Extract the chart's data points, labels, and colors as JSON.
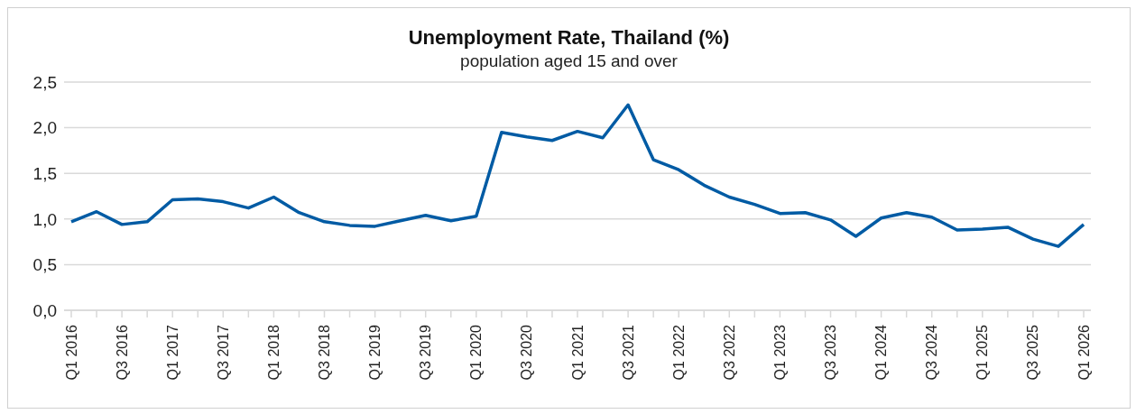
{
  "chart_data": {
    "type": "line",
    "title": "Unemployment Rate, Thailand (%)",
    "subtitle": "population aged 15 and over",
    "categories": [
      "Q1 2016",
      null,
      "Q3 2016",
      null,
      "Q1 2017",
      null,
      "Q3 2017",
      null,
      "Q1 2018",
      null,
      "Q3 2018",
      null,
      "Q1 2019",
      null,
      "Q3 2019",
      null,
      "Q1 2020",
      null,
      "Q3 2020",
      null,
      "Q1 2021",
      null,
      "Q3 2021",
      null,
      "Q1 2022",
      null,
      "Q3 2022",
      null,
      "Q1 2023",
      null,
      "Q3 2023",
      null,
      "Q1 2024",
      null,
      "Q3 2024",
      null,
      "Q1 2025",
      null,
      "Q3 2025",
      null,
      "Q1 2026"
    ],
    "series": [
      {
        "color": "#005ba4",
        "values": [
          0.97,
          1.08,
          0.94,
          0.97,
          1.21,
          1.22,
          1.19,
          1.12,
          1.24,
          1.07,
          0.97,
          0.93,
          0.92,
          0.98,
          1.04,
          0.98,
          1.03,
          1.95,
          1.9,
          1.86,
          1.96,
          1.89,
          2.25,
          1.65,
          1.54,
          1.37,
          1.24,
          1.16,
          1.06,
          1.07,
          0.99,
          0.81,
          1.01,
          1.07,
          1.02,
          0.88,
          0.89,
          0.91,
          0.78,
          0.7,
          0.94
        ]
      }
    ],
    "ylim": [
      0,
      2.5
    ],
    "yticks": [
      {
        "value": 0,
        "label": "0,0"
      },
      {
        "value": 0.5,
        "label": "0,5"
      },
      {
        "value": 1,
        "label": "1,0"
      },
      {
        "value": 1.5,
        "label": "1,5"
      },
      {
        "value": 2,
        "label": "2,0"
      },
      {
        "value": 2.5,
        "label": "2,5"
      }
    ],
    "grid": "y",
    "legend": false,
    "marker": "none",
    "line_style": "solid"
  }
}
